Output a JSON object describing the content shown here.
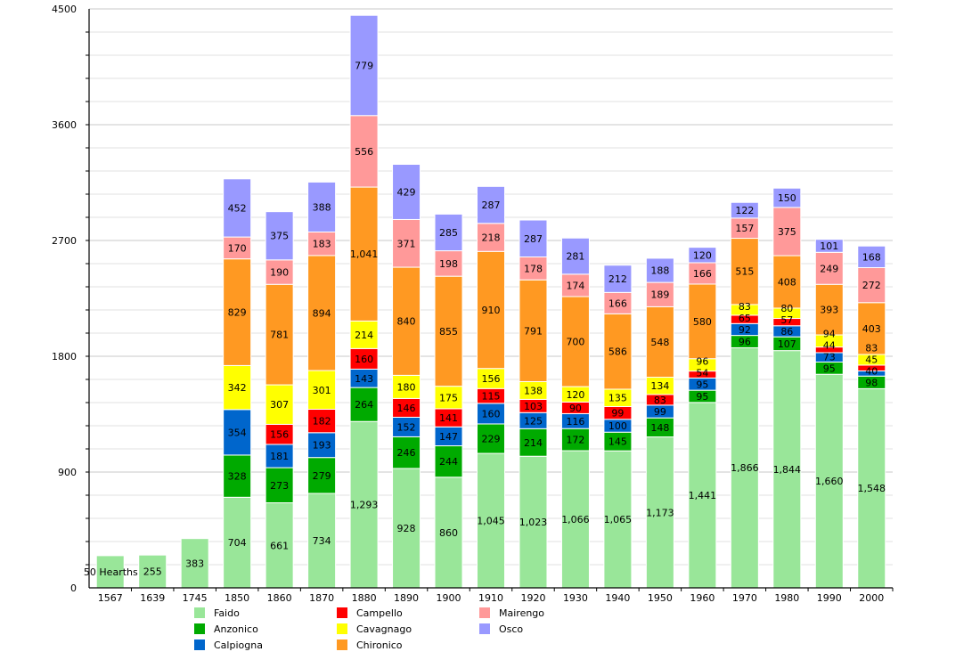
{
  "chart_data": {
    "type": "bar",
    "stacked": true,
    "title": "",
    "xlabel": "",
    "ylabel": "",
    "ylim": [
      0,
      4500
    ],
    "yticks": [
      0,
      900,
      1800,
      2700,
      3600,
      4500
    ],
    "minor_grid_step": 180,
    "grid": true,
    "legend_position": "bottom",
    "categories": [
      "1567",
      "1639",
      "1745",
      "1850",
      "1860",
      "1870",
      "1880",
      "1890",
      "1900",
      "1910",
      "1920",
      "1930",
      "1940",
      "1950",
      "1960",
      "1970",
      "1980",
      "1990",
      "2000"
    ],
    "series": [
      {
        "name": "Faido",
        "color": "#99e699",
        "values": [
          250,
          255,
          383,
          704,
          661,
          734,
          1293,
          928,
          860,
          1045,
          1023,
          1066,
          1065,
          1173,
          1441,
          1866,
          1844,
          1660,
          1548
        ],
        "labels": [
          "50 Hearths",
          "255",
          "383",
          "704",
          "661",
          "734",
          "1,293",
          "928",
          "860",
          "1,045",
          "1,023",
          "1,066",
          "1,065",
          "1,173",
          "1,441",
          "1,866",
          "1,844",
          "1,660",
          "1,548"
        ]
      },
      {
        "name": "Anzonico",
        "color": "#00aa00",
        "values": [
          0,
          0,
          0,
          328,
          273,
          279,
          264,
          246,
          244,
          229,
          214,
          172,
          145,
          148,
          95,
          96,
          107,
          95,
          98
        ]
      },
      {
        "name": "Calpiogna",
        "color": "#0066cc",
        "values": [
          0,
          0,
          0,
          354,
          181,
          193,
          143,
          152,
          147,
          160,
          125,
          116,
          100,
          99,
          95,
          92,
          86,
          73,
          40
        ]
      },
      {
        "name": "Campello",
        "color": "#ff0000",
        "values": [
          0,
          0,
          0,
          0,
          156,
          182,
          160,
          146,
          141,
          115,
          103,
          90,
          99,
          83,
          54,
          65,
          57,
          44,
          45
        ]
      },
      {
        "name": "Cavagnago",
        "color": "#ffff00",
        "values": [
          0,
          0,
          0,
          342,
          307,
          301,
          214,
          180,
          175,
          156,
          138,
          120,
          135,
          134,
          96,
          83,
          80,
          94,
          83
        ]
      },
      {
        "name": "Chironico",
        "color": "#ff9922",
        "values": [
          0,
          0,
          0,
          829,
          781,
          894,
          1041,
          840,
          855,
          910,
          791,
          700,
          586,
          548,
          580,
          515,
          408,
          393,
          403
        ],
        "labels": [
          "",
          "",
          "",
          "829",
          "781",
          "894",
          "1,041",
          "840",
          "855",
          "910",
          "791",
          "700",
          "586",
          "548",
          "580",
          "515",
          "408",
          "393",
          "403"
        ]
      },
      {
        "name": "Mairengo",
        "color": "#ff9999",
        "values": [
          0,
          0,
          0,
          170,
          190,
          183,
          556,
          371,
          198,
          218,
          178,
          174,
          166,
          189,
          166,
          157,
          375,
          249,
          272
        ]
      },
      {
        "name": "Osco",
        "color": "#9999ff",
        "values": [
          0,
          0,
          0,
          452,
          375,
          388,
          779,
          429,
          285,
          287,
          287,
          281,
          212,
          188,
          120,
          122,
          150,
          101,
          168
        ]
      }
    ]
  }
}
